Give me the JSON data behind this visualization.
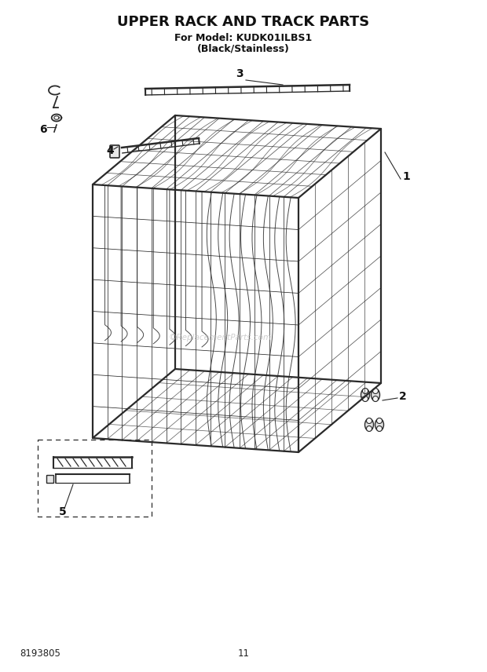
{
  "title": "UPPER RACK AND TRACK PARTS",
  "subtitle1": "For Model: KUDK01ILBS1",
  "subtitle2": "(Black/Stainless)",
  "doc_number": "8193805",
  "page_number": "11",
  "bg_color": "#ffffff",
  "line_color": "#2a2a2a",
  "watermark": "©ReplacementParts.com",
  "title_fontsize": 13,
  "label_fontsize": 10
}
